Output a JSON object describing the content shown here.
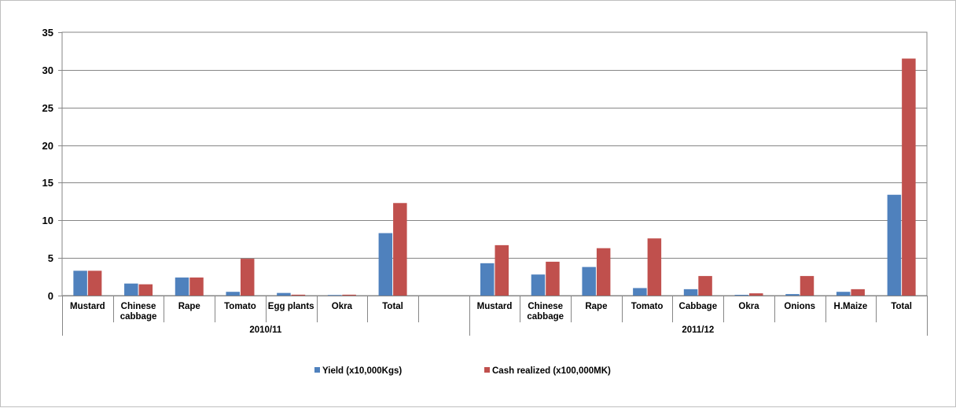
{
  "chart_data": {
    "type": "bar",
    "groups": [
      {
        "label": "2010/11",
        "categories": [
          "Mustard",
          "Chinese cabbage",
          "Rape",
          "Tomato",
          "Egg plants",
          "Okra",
          "Total",
          ""
        ]
      },
      {
        "label": "2011/12",
        "categories": [
          "Mustard",
          "Chinese cabbage",
          "Rape",
          "Tomato",
          "Cabbage",
          "Okra",
          "Onions",
          "H.Maize",
          "Total"
        ]
      }
    ],
    "categories": [
      "Mustard",
      "Chinese cabbage",
      "Rape",
      "Tomato",
      "Egg plants",
      "Okra",
      "Total",
      "",
      "Mustard",
      "Chinese cabbage",
      "Rape",
      "Tomato",
      "Cabbage",
      "Okra",
      "Onions",
      "H.Maize",
      "Total"
    ],
    "series": [
      {
        "name": "Yield (x10,000Kgs)",
        "color": "#4f81bd",
        "values": [
          3.3,
          1.6,
          2.4,
          0.5,
          0.35,
          0.08,
          8.3,
          null,
          4.3,
          2.8,
          3.8,
          1.0,
          0.85,
          0.1,
          0.2,
          0.5,
          13.4
        ]
      },
      {
        "name": "Cash realized (x100,000MK)",
        "color": "#c0504d",
        "values": [
          3.3,
          1.5,
          2.4,
          4.9,
          0.12,
          0.12,
          12.3,
          null,
          6.7,
          4.5,
          6.3,
          7.6,
          2.6,
          0.3,
          2.6,
          0.85,
          31.5
        ]
      }
    ],
    "ylim": [
      0,
      35
    ],
    "yticks": [
      0,
      5,
      10,
      15,
      20,
      25,
      30,
      35
    ],
    "grid": true,
    "legend_position": "bottom"
  }
}
